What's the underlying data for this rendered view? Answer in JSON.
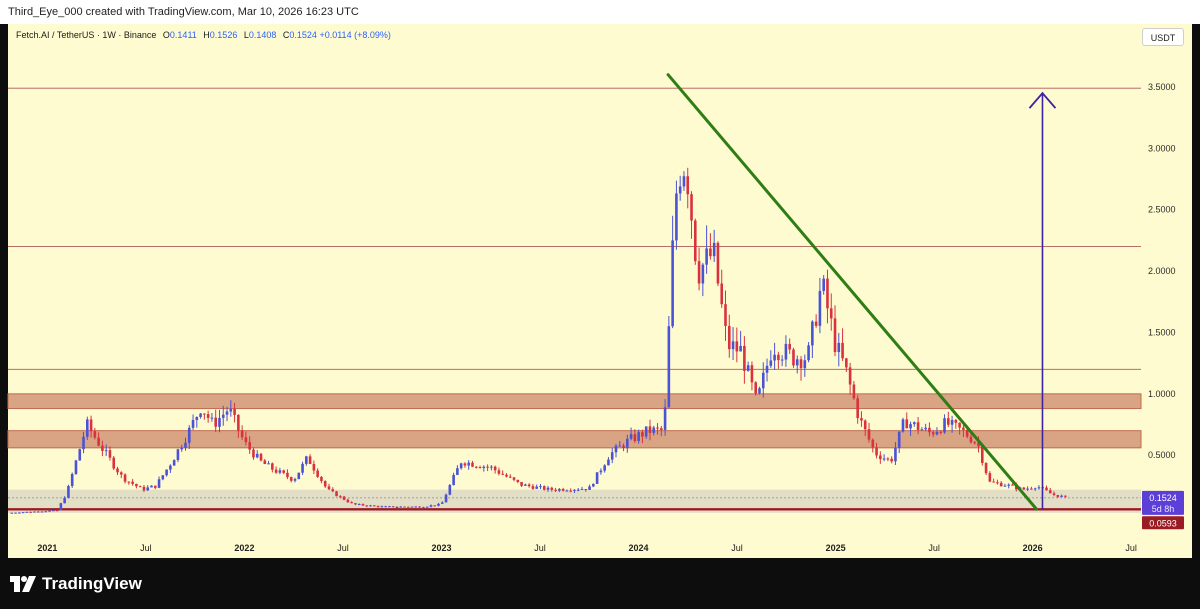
{
  "header": {
    "credit": "Third_Eye_000 created with TradingView.com, Mar 10, 2026 16:23 UTC"
  },
  "legend": {
    "symbol": "Fetch.AI / TetherUS · 1W · Binance",
    "open_label": "O",
    "open": "0.1411",
    "high_label": "H",
    "high": "0.1526",
    "low_label": "L",
    "low": "0.1408",
    "close_label": "C",
    "close": "0.1524",
    "change": "+0.0114 (+8.09%)"
  },
  "currency": "USDT",
  "brand": {
    "name": "TradingView"
  },
  "colors": {
    "up": "#4a52d6",
    "down": "#d9323e",
    "trendline": "#2e7d15",
    "arrow": "#3b23a3",
    "zone": "#c06a52",
    "support_line": "#9b1b24",
    "hline": "#b05858",
    "background": "#fffbd0"
  },
  "chart_data": {
    "type": "candlestick",
    "title": "Fetch.AI / TetherUS · 1W · Binance",
    "xlabel": "",
    "ylabel": "USDT",
    "ylim": [
      -0.15,
      3.85
    ],
    "y_ticks": [
      "3.5000",
      "3.0000",
      "2.5000",
      "2.0000",
      "1.5000",
      "1.0000",
      "0.5000"
    ],
    "x_range": [
      2020.8,
      2026.55
    ],
    "x_ticks": [
      {
        "label": "2021",
        "t": 2021.0,
        "bold": true
      },
      {
        "label": "Jul",
        "t": 2021.5,
        "bold": false
      },
      {
        "label": "2022",
        "t": 2022.0,
        "bold": true
      },
      {
        "label": "Jul",
        "t": 2022.5,
        "bold": false
      },
      {
        "label": "2023",
        "t": 2023.0,
        "bold": true
      },
      {
        "label": "Jul",
        "t": 2023.5,
        "bold": false
      },
      {
        "label": "2024",
        "t": 2024.0,
        "bold": true
      },
      {
        "label": "Jul",
        "t": 2024.5,
        "bold": false
      },
      {
        "label": "2025",
        "t": 2025.0,
        "bold": true
      },
      {
        "label": "Jul",
        "t": 2025.5,
        "bold": false
      },
      {
        "label": "2026",
        "t": 2026.0,
        "bold": true
      },
      {
        "label": "Jul",
        "t": 2026.5,
        "bold": false
      }
    ],
    "price_path": [
      [
        2020.8,
        0.03
      ],
      [
        2021.05,
        0.05
      ],
      [
        2021.1,
        0.2
      ],
      [
        2021.2,
        0.75
      ],
      [
        2021.28,
        0.55
      ],
      [
        2021.38,
        0.32
      ],
      [
        2021.48,
        0.22
      ],
      [
        2021.55,
        0.25
      ],
      [
        2021.62,
        0.42
      ],
      [
        2021.72,
        0.7
      ],
      [
        2021.78,
        0.9
      ],
      [
        2021.84,
        0.75
      ],
      [
        2021.92,
        0.88
      ],
      [
        2022.0,
        0.6
      ],
      [
        2022.08,
        0.45
      ],
      [
        2022.15,
        0.38
      ],
      [
        2022.25,
        0.3
      ],
      [
        2022.32,
        0.48
      ],
      [
        2022.42,
        0.22
      ],
      [
        2022.55,
        0.1
      ],
      [
        2022.7,
        0.08
      ],
      [
        2022.9,
        0.08
      ],
      [
        2023.0,
        0.1
      ],
      [
        2023.05,
        0.28
      ],
      [
        2023.1,
        0.45
      ],
      [
        2023.25,
        0.4
      ],
      [
        2023.4,
        0.26
      ],
      [
        2023.55,
        0.22
      ],
      [
        2023.75,
        0.23
      ],
      [
        2023.85,
        0.5
      ],
      [
        2023.95,
        0.62
      ],
      [
        2024.05,
        0.7
      ],
      [
        2024.13,
        0.7
      ],
      [
        2024.18,
        2.4
      ],
      [
        2024.2,
        2.8
      ],
      [
        2024.24,
        2.9
      ],
      [
        2024.3,
        2.0
      ],
      [
        2024.38,
        2.15
      ],
      [
        2024.45,
        1.4
      ],
      [
        2024.52,
        1.35
      ],
      [
        2024.6,
        0.92
      ],
      [
        2024.68,
        1.4
      ],
      [
        2024.78,
        1.3
      ],
      [
        2024.86,
        1.3
      ],
      [
        2024.93,
        1.9
      ],
      [
        2025.0,
        1.4
      ],
      [
        2025.05,
        1.2
      ],
      [
        2025.12,
        0.8
      ],
      [
        2025.2,
        0.52
      ],
      [
        2025.28,
        0.45
      ],
      [
        2025.35,
        0.78
      ],
      [
        2025.48,
        0.68
      ],
      [
        2025.56,
        0.76
      ],
      [
        2025.64,
        0.7
      ],
      [
        2025.72,
        0.6
      ],
      [
        2025.78,
        0.28
      ],
      [
        2025.86,
        0.26
      ],
      [
        2025.95,
        0.22
      ],
      [
        2026.02,
        0.25
      ],
      [
        2026.1,
        0.18
      ],
      [
        2026.18,
        0.1524
      ]
    ],
    "resistance_zones": [
      [
        0.88,
        1.0
      ],
      [
        0.56,
        0.7
      ]
    ],
    "support_zone": [
      0.03,
      0.22
    ],
    "horizontal_lines": [
      3.49,
      2.2,
      1.2
    ],
    "support_line": 0.0593,
    "trendline": {
      "from": [
        2024.15,
        3.6
      ],
      "to": [
        2026.02,
        0.06
      ]
    },
    "arrow": {
      "x": 2026.05,
      "from": 0.06,
      "to": 3.45
    },
    "last_price": {
      "label": "0.1524",
      "sub": "5d 8h",
      "value": 0.1524
    },
    "support_price": {
      "label": "0.0593",
      "value": 0.0593
    }
  }
}
